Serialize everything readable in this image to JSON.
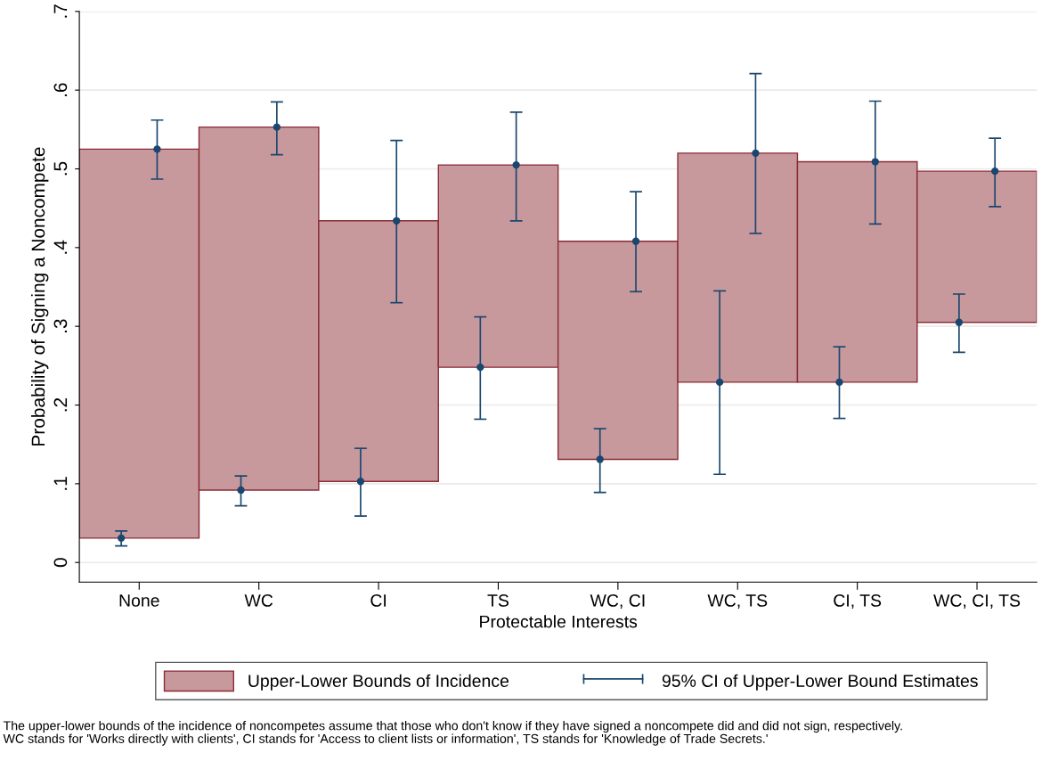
{
  "chart_data": {
    "type": "bar",
    "xlabel": "Protectable Interests",
    "ylabel": "Probability of Signing a Noncompete",
    "categories": [
      "None",
      "WC",
      "CI",
      "TS",
      "WC, CI",
      "WC, TS",
      "CI, TS",
      "WC, CI, TS"
    ],
    "series": [
      {
        "name": "Upper-Lower Bounds of Incidence",
        "color": "#c7999c",
        "base": [
          0.031,
          0.092,
          0.103,
          0.248,
          0.131,
          0.229,
          0.229,
          0.305
        ],
        "values": [
          0.494,
          0.461,
          0.331,
          0.257,
          0.277,
          0.291,
          0.28,
          0.192
        ]
      },
      {
        "name": "95% CI of Upper-Lower Bound Estimates",
        "type": "scatter",
        "color": "#1a476f",
        "marker": "circle",
        "x": [
          "None",
          "WC",
          "CI",
          "TS",
          "WC, CI",
          "WC, TS",
          "CI, TS",
          "WC, CI, TS",
          "None",
          "WC",
          "CI",
          "TS",
          "WC, CI",
          "WC, TS",
          "CI, TS",
          "WC, CI, TS"
        ],
        "values": [
          0.031,
          0.092,
          0.103,
          0.248,
          0.131,
          0.229,
          0.229,
          0.305,
          0.525,
          0.553,
          0.434,
          0.505,
          0.408,
          0.52,
          0.509,
          0.497
        ],
        "errors": [
          [
            0.021,
            0.04
          ],
          [
            0.072,
            0.11
          ],
          [
            0.059,
            0.145
          ],
          [
            0.182,
            0.312
          ],
          [
            0.089,
            0.17
          ],
          [
            0.112,
            0.345
          ],
          [
            0.183,
            0.274
          ],
          [
            0.267,
            0.341
          ],
          [
            0.487,
            0.562
          ],
          [
            0.518,
            0.585
          ],
          [
            0.33,
            0.536
          ],
          [
            0.434,
            0.572
          ],
          [
            0.344,
            0.471
          ],
          [
            0.418,
            0.621
          ],
          [
            0.43,
            0.586
          ],
          [
            0.452,
            0.539
          ]
        ]
      }
    ],
    "ylim": [
      -0.025,
      0.7
    ],
    "yticks": [
      {
        "value": 0,
        "label": "0"
      },
      {
        "value": 0.1,
        "label": ".1"
      },
      {
        "value": 0.2,
        "label": ".2"
      },
      {
        "value": 0.3,
        "label": ".3"
      },
      {
        "value": 0.4,
        "label": ".4"
      },
      {
        "value": 0.5,
        "label": ".5"
      },
      {
        "value": 0.6,
        "label": ".6"
      },
      {
        "value": 0.7,
        "label": ".7"
      }
    ],
    "grid": "y",
    "legend": "bottom",
    "annotations": [
      "The upper-lower bounds of the incidence of noncompetes assume that those who don't know if they have signed a noncompete did and did not sign, respectively.",
      "WC stands for 'Works directly with clients', CI stands for 'Access to client lists or information', TS stands for 'Knowledge of Trade Secrets.'"
    ]
  }
}
